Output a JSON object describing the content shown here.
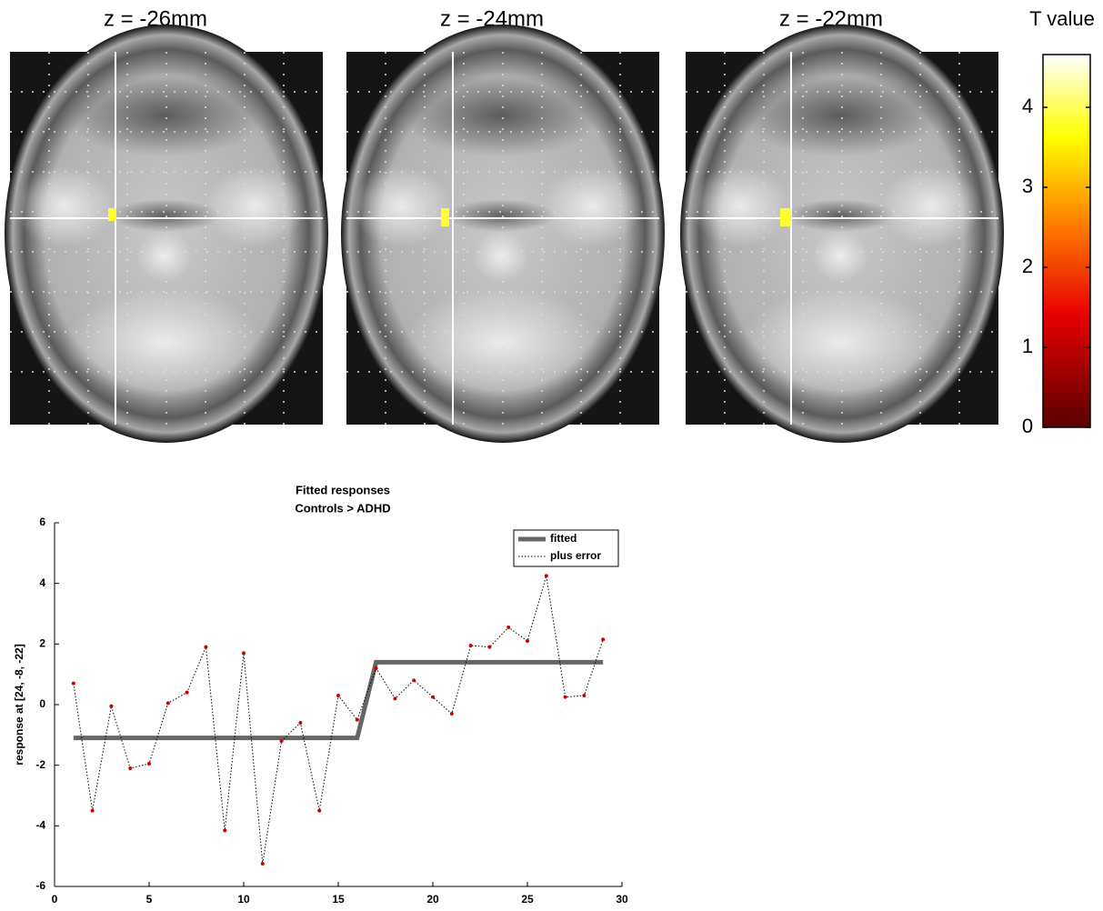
{
  "slices": [
    {
      "title": "z = -26mm"
    },
    {
      "title": "z = -24mm"
    },
    {
      "title": "z = -22mm"
    }
  ],
  "chart_data": [
    {
      "type": "colorbar",
      "title": "T value",
      "ylim": [
        0,
        4.66
      ],
      "yticks": [
        0,
        1,
        2,
        3,
        4
      ]
    },
    {
      "type": "line",
      "title": [
        "Fitted responses",
        "Controls > ADHD"
      ],
      "y_label": "response at [24, -8, -22]",
      "x": [
        1,
        2,
        3,
        4,
        5,
        6,
        7,
        8,
        9,
        10,
        11,
        12,
        13,
        14,
        15,
        16,
        17,
        18,
        19,
        20,
        21,
        22,
        23,
        24,
        25,
        26,
        27,
        28,
        29
      ],
      "series": [
        {
          "name": "fitted",
          "color": "#666666",
          "values": [
            -1.1,
            -1.1,
            -1.1,
            -1.1,
            -1.1,
            -1.1,
            -1.1,
            -1.1,
            -1.1,
            -1.1,
            -1.1,
            -1.1,
            -1.1,
            -1.1,
            -1.1,
            -1.1,
            1.4,
            1.4,
            1.4,
            1.4,
            1.4,
            1.4,
            1.4,
            1.4,
            1.4,
            1.4,
            1.4,
            1.4,
            1.4
          ]
        },
        {
          "name": "plus error",
          "color": "#000000",
          "marker_color": "#cc0000",
          "values": [
            0.7,
            -3.5,
            -0.05,
            -2.1,
            -1.95,
            0.05,
            0.4,
            1.9,
            -4.15,
            1.7,
            -5.25,
            -1.2,
            -0.6,
            -3.5,
            0.3,
            -0.5,
            1.2,
            0.2,
            0.8,
            0.25,
            -0.3,
            1.95,
            1.9,
            2.55,
            2.1,
            4.25,
            0.25,
            0.3,
            2.15
          ]
        }
      ],
      "xlim": [
        0,
        30
      ],
      "xticks": [
        0,
        5,
        10,
        15,
        20,
        25,
        30
      ],
      "ylim": [
        -6,
        6
      ],
      "yticks": [
        -6,
        -4,
        -2,
        0,
        2,
        4,
        6
      ],
      "legend": "upper right"
    }
  ]
}
